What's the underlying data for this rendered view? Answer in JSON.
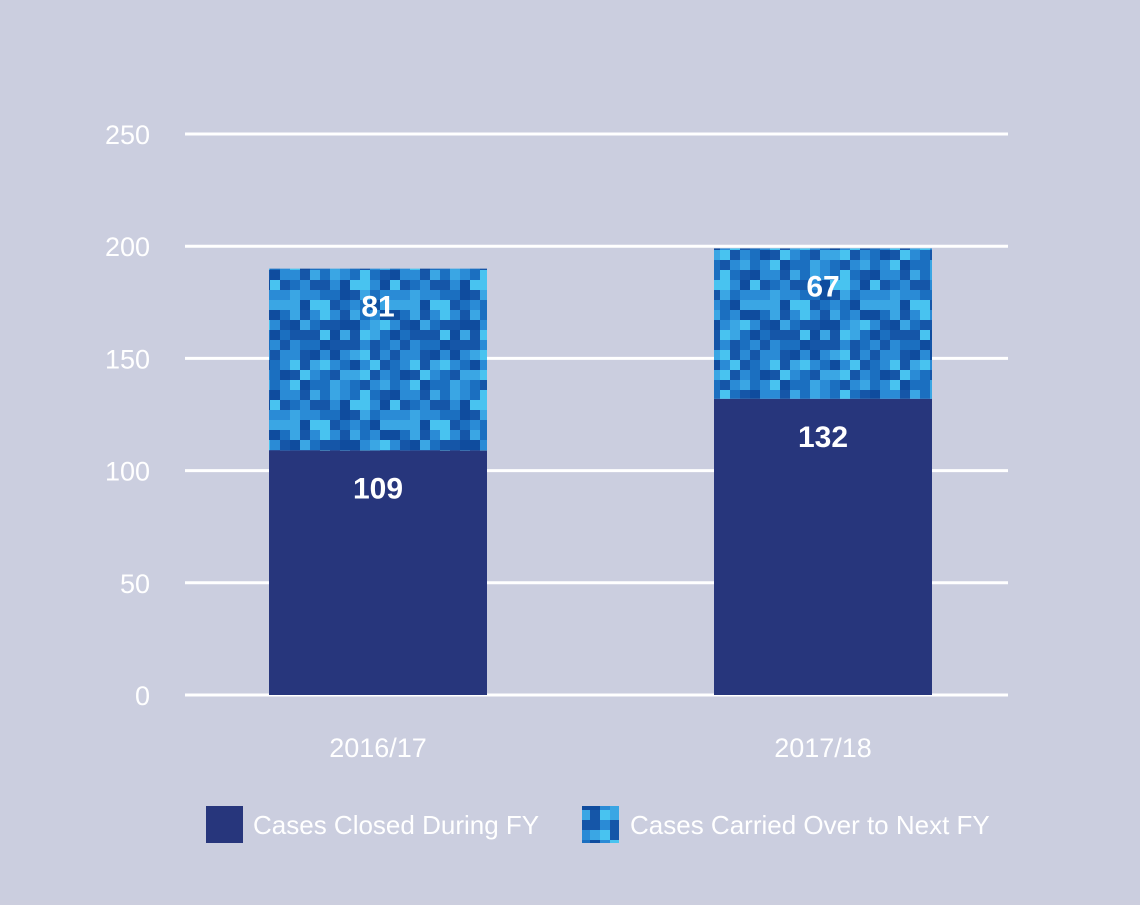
{
  "chart_data": {
    "type": "bar",
    "stacked": true,
    "title": "",
    "xlabel": "",
    "ylabel": "",
    "categories": [
      "2016/17",
      "2017/18"
    ],
    "series": [
      {
        "name": "Cases Closed During FY",
        "values": [
          109,
          132
        ],
        "color": "#27367c",
        "pattern": "solid"
      },
      {
        "name": "Cases Carried Over to Next FY",
        "values": [
          81,
          67
        ],
        "color": "#1a5fb4",
        "pattern": "pixel-camo"
      }
    ],
    "ylim": [
      0,
      250
    ],
    "yticks": [
      0,
      50,
      100,
      150,
      200,
      250
    ],
    "grid": true,
    "legend_position": "bottom"
  },
  "colors": {
    "background": "#cbcedf",
    "grid": "#ffffff",
    "text": "#ffffff",
    "camo_palette": [
      "#1556a8",
      "#1b6fc0",
      "#2a8bd6",
      "#48c3f0",
      "#0f4c9e",
      "#3aa6e4"
    ]
  }
}
